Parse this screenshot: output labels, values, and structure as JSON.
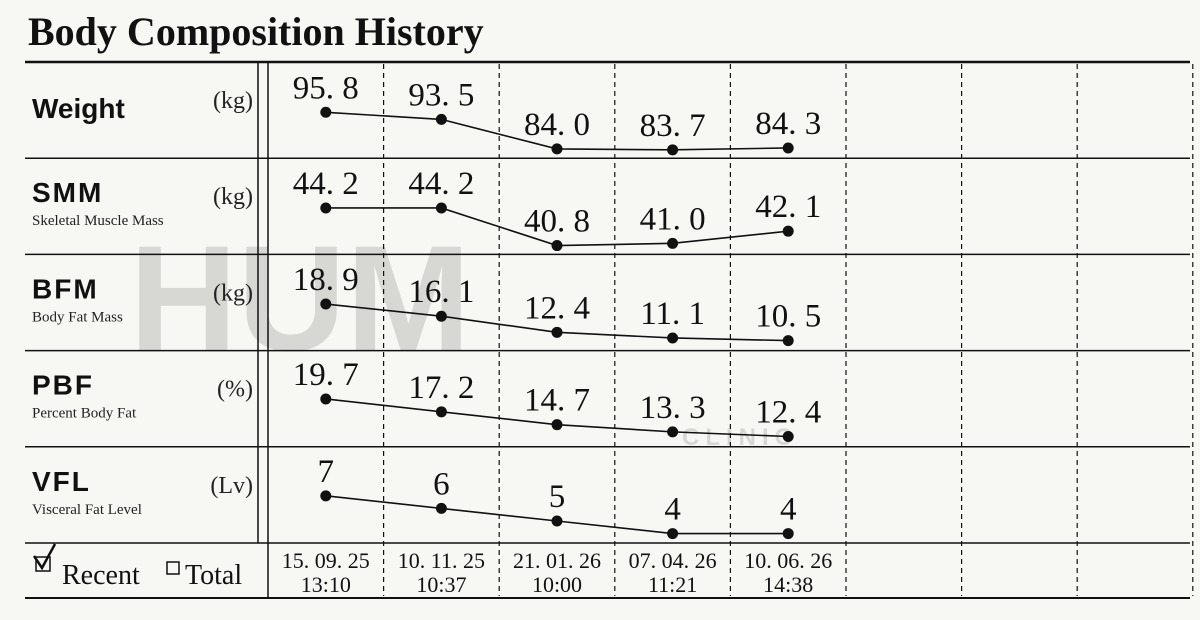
{
  "title": "Body Composition History",
  "watermark": {
    "text": "HUM",
    "subtext": "CLINIC"
  },
  "dates": [
    "15. 09. 25",
    "10. 11. 25",
    "21. 01. 26",
    "07. 04. 26",
    "10. 06. 26"
  ],
  "times": [
    "13:10",
    "10:37",
    "10:00",
    "11:21",
    "14:38"
  ],
  "footer": {
    "recent": "Recent",
    "total": "Total"
  },
  "chart_data": [
    {
      "type": "line",
      "title": "Weight",
      "unit": "(kg)",
      "values": [
        95.8,
        93.5,
        84.0,
        83.7,
        84.3
      ],
      "value_labels": [
        "95. 8",
        "93. 5",
        "84. 0",
        "83. 7",
        "84. 3"
      ],
      "ylim": [
        81,
        112
      ],
      "color": "#111111"
    },
    {
      "type": "line",
      "title": "SMM",
      "subtitle": "Skeletal Muscle Mass",
      "unit": "(kg)",
      "values": [
        44.2,
        44.2,
        40.8,
        41.0,
        42.1
      ],
      "value_labels": [
        "44. 2",
        "44. 2",
        "40. 8",
        "41. 0",
        "42. 1"
      ],
      "ylim": [
        40,
        48.7
      ],
      "color": "#111111"
    },
    {
      "type": "line",
      "title": "BFM",
      "subtitle": "Body Fat Mass",
      "unit": "(kg)",
      "values": [
        18.9,
        16.1,
        12.4,
        11.1,
        10.5
      ],
      "value_labels": [
        "18. 9",
        "16. 1",
        "12. 4",
        "11. 1",
        "10. 5"
      ],
      "ylim": [
        8.2,
        30.3
      ],
      "color": "#111111"
    },
    {
      "type": "line",
      "title": "PBF",
      "subtitle": "Percent Body Fat",
      "unit": "(%)",
      "values": [
        19.7,
        17.2,
        14.7,
        13.3,
        12.4
      ],
      "value_labels": [
        "19. 7",
        "17. 2",
        "14. 7",
        "13. 3",
        "12. 4"
      ],
      "ylim": [
        10.4,
        29.1
      ],
      "color": "#111111"
    },
    {
      "type": "line",
      "title": "VFL",
      "subtitle": "Visceral Fat Level",
      "unit": "(Lv)",
      "values": [
        7,
        6,
        5,
        4,
        4
      ],
      "ylim": [
        3.25,
        10.9
      ],
      "color": "#111111"
    }
  ]
}
